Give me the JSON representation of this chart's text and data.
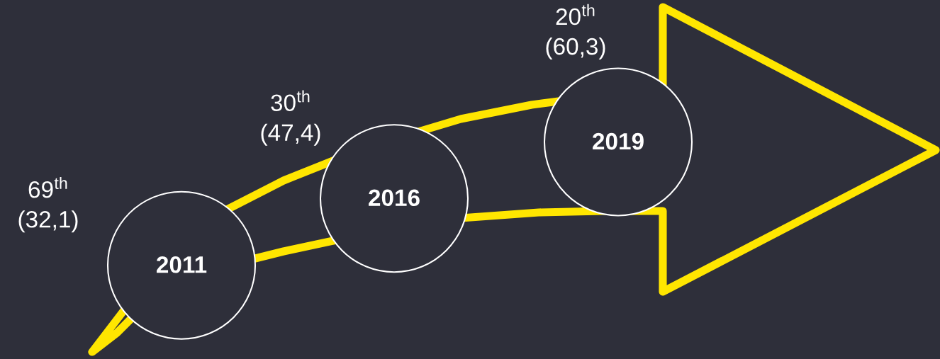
{
  "chart_data": {
    "type": "other",
    "categories": [
      "2011",
      "2016",
      "2019"
    ],
    "values": [
      32.1,
      47.4,
      60.3
    ],
    "value_labels": [
      "(32,1)",
      "(47,4)",
      "(60,3)"
    ],
    "annotations": [
      "69$^{th}$",
      "30$^{th}$",
      "20$^{th}$"
    ]
  }
}
